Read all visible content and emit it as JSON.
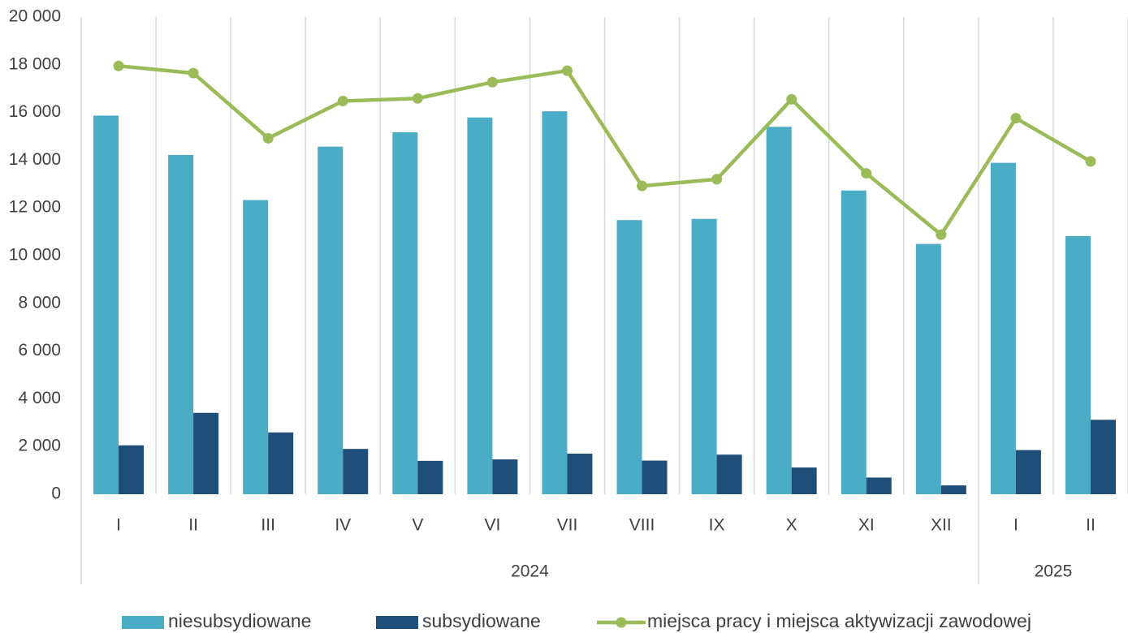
{
  "chart_data": {
    "type": "bar_line",
    "categories": [
      "I",
      "II",
      "III",
      "IV",
      "V",
      "VI",
      "VII",
      "VIII",
      "IX",
      "X",
      "XI",
      "XII",
      "I",
      "II"
    ],
    "category_groups": [
      {
        "label": "2024",
        "start": 0,
        "end": 11
      },
      {
        "label": "2025",
        "start": 12,
        "end": 13
      }
    ],
    "series": [
      {
        "name": "niesubsydiowane",
        "type": "bar",
        "color": "#4bacc6",
        "values": [
          15870,
          14220,
          12330,
          14570,
          15170,
          15790,
          16050,
          11490,
          11540,
          15400,
          12730,
          10490,
          13890,
          10820
        ]
      },
      {
        "name": "subsydiowane",
        "type": "bar",
        "color": "#1f4e79",
        "values": [
          2050,
          3410,
          2590,
          1900,
          1400,
          1460,
          1700,
          1410,
          1660,
          1120,
          700,
          370,
          1850,
          3120
        ]
      },
      {
        "name": "miejsca pracy i miejsca aktywizacji zawodowej",
        "type": "line",
        "color": "#9bbb59",
        "values": [
          17950,
          17650,
          14920,
          16480,
          16590,
          17270,
          17750,
          12920,
          13200,
          16550,
          13450,
          10880,
          15760,
          13950
        ]
      }
    ],
    "ylim": [
      0,
      20000
    ],
    "yticks": [
      0,
      {
        "value": 2000,
        "label": "2 000"
      },
      {
        "value": 4000,
        "label": "4 000"
      },
      {
        "value": 6000,
        "label": "6 000"
      },
      {
        "value": 8000,
        "label": "8 000"
      },
      {
        "value": 10000,
        "label": "10 000"
      },
      {
        "value": 12000,
        "label": "12 000"
      },
      {
        "value": 14000,
        "label": "14 000"
      },
      {
        "value": 16000,
        "label": "16 000"
      },
      {
        "value": 18000,
        "label": "18 000"
      },
      {
        "value": 20000,
        "label": "20 000"
      }
    ],
    "legend": "bottom"
  }
}
